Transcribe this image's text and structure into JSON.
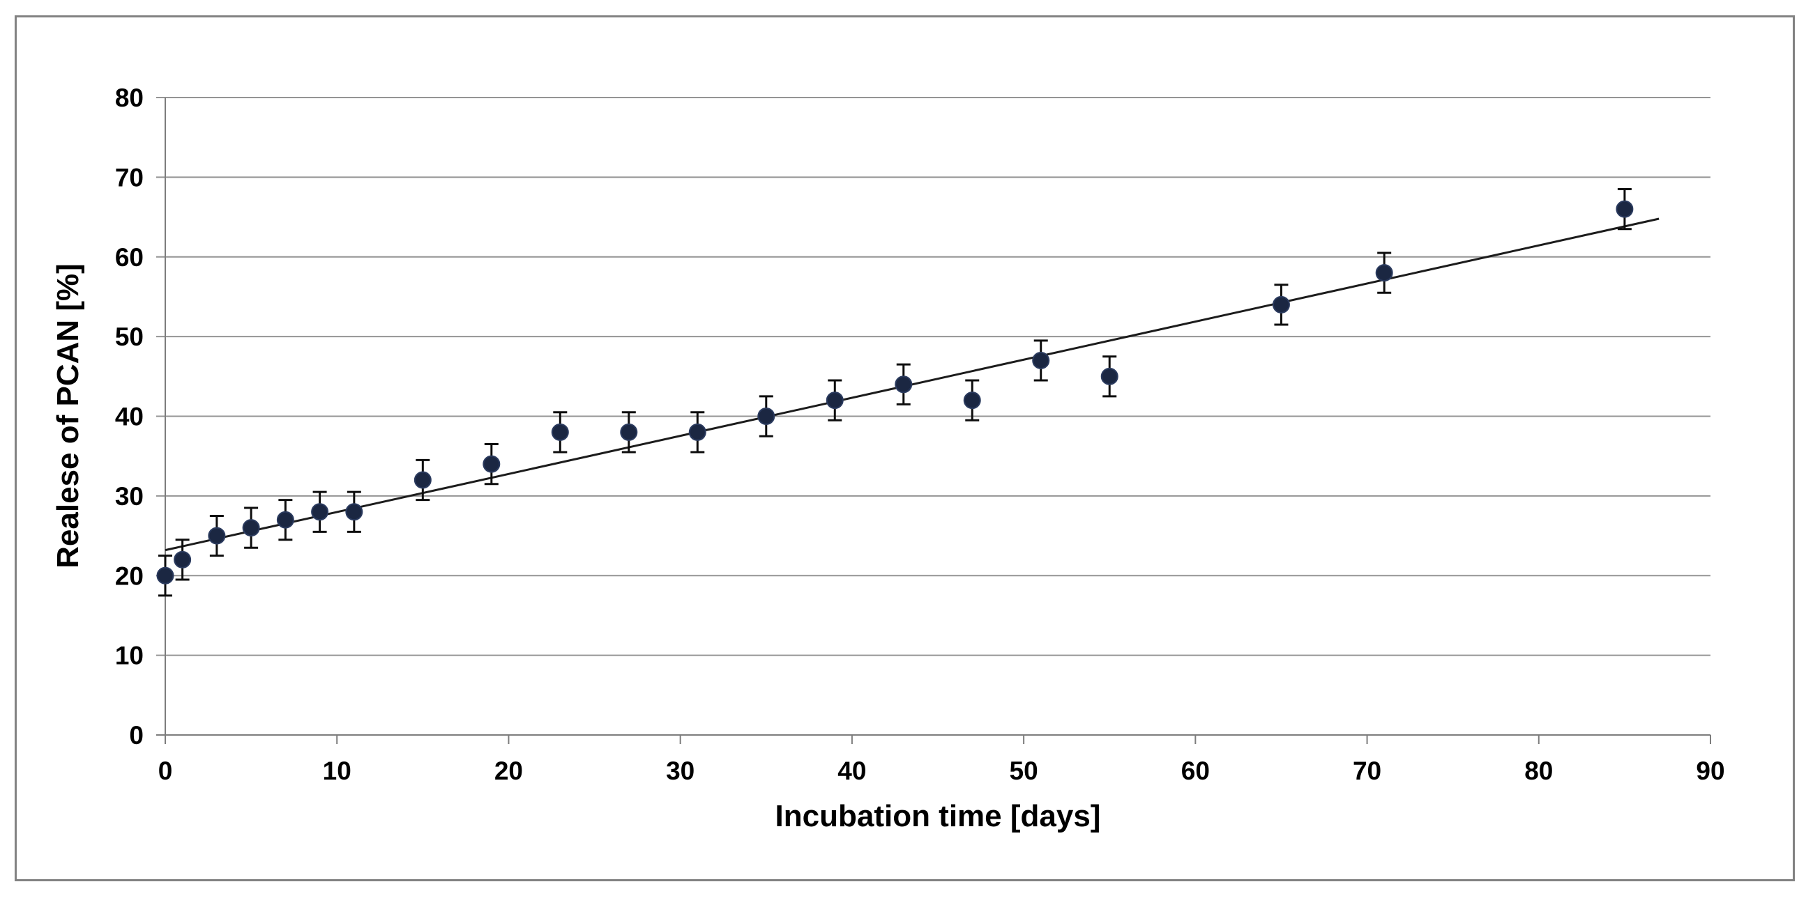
{
  "chart_data": {
    "type": "scatter",
    "title": "",
    "xlabel": "Incubation time [days]",
    "ylabel": "Realese of PCAN [%]",
    "xlim": [
      0,
      90
    ],
    "ylim": [
      0,
      80
    ],
    "xticks": [
      0,
      10,
      20,
      30,
      40,
      50,
      60,
      70,
      80,
      90
    ],
    "yticks": [
      0,
      10,
      20,
      30,
      40,
      50,
      60,
      70,
      80
    ],
    "grid": "horizontal-only",
    "legend_position": "none",
    "series": [
      {
        "name": "PCAN release",
        "marker": "filled-circle",
        "x": [
          0,
          1,
          3,
          5,
          7,
          9,
          11,
          15,
          19,
          23,
          27,
          31,
          35,
          39,
          43,
          47,
          51,
          55,
          65,
          71,
          85
        ],
        "y": [
          20,
          22,
          25,
          26,
          27,
          28,
          28,
          32,
          34,
          38,
          38,
          38,
          40,
          42,
          44,
          42,
          47,
          45,
          54,
          58,
          66
        ],
        "yerr": 2.5
      }
    ],
    "trendline": {
      "type": "linear",
      "slope": 0.478,
      "intercept": 23.2,
      "x_start": 0,
      "x_end": 87
    }
  },
  "styles": {
    "background": "#ffffff",
    "frame_border_color": "#828282",
    "grid_color": "#949494",
    "axis_color": "#7d7d7d",
    "tick_color": "#7d7d7d",
    "text_color": "#000000",
    "marker_color": "#1b2742",
    "marker_edge_color": "#2a3a5e",
    "error_bar_color": "#0d0d0d",
    "trendline_color": "#1c1c1c"
  }
}
